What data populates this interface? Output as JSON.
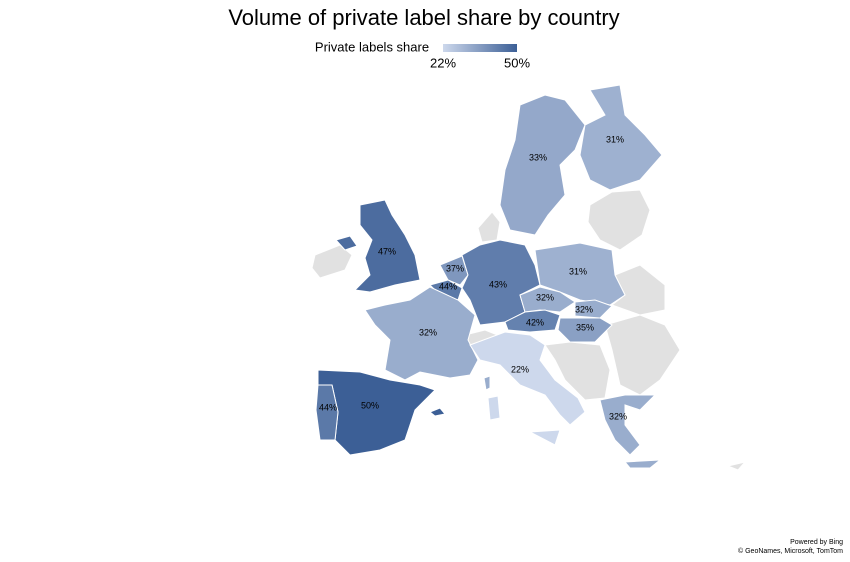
{
  "chart_data": {
    "type": "choropleth",
    "title": "Volume of private label share by country",
    "legend_title": "Private labels share",
    "color_scale": [
      "#cdd8ec",
      "#3c5f96"
    ],
    "no_data_color": "#e1e1e1",
    "scale_ticks": [
      {
        "value": 22,
        "label": "22%"
      },
      {
        "value": 50,
        "label": "50%"
      }
    ],
    "values": [
      47,
      37,
      44,
      43,
      31,
      32,
      32,
      42,
      35,
      32,
      22,
      50,
      44,
      32,
      33,
      31
    ],
    "value_labels": [
      "47%",
      "37%",
      "44%",
      "43%",
      "31%",
      "32%",
      "32%",
      "42%",
      "35%",
      "32%",
      "22%",
      "50%",
      "44%",
      "32%",
      "33%",
      "31%"
    ],
    "attribution": [
      "Powered by Bing",
      "© GeoNames, Microsoft, TomTom"
    ]
  }
}
